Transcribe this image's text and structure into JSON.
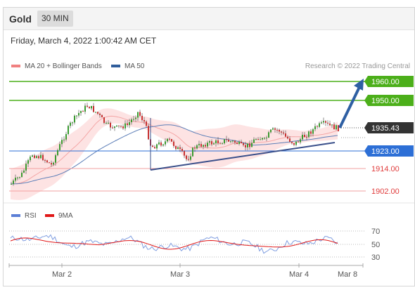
{
  "header": {
    "title": "Gold",
    "timeframe": "30 MIN"
  },
  "datetime": "Friday, March 4, 2022 1:00:42 AM CET",
  "legend": {
    "bollinger": {
      "label": "MA 20 + Bollinger Bands",
      "color": "#f08080"
    },
    "ma50": {
      "label": "MA 50",
      "color": "#2f5d9b"
    }
  },
  "credit": "Research © 2022 Trading Central",
  "levels": [
    {
      "label": "1960.00",
      "value": 1960,
      "color": "#4caf1a",
      "kind": "resistance"
    },
    {
      "label": "1950.00",
      "value": 1950,
      "color": "#4caf1a",
      "kind": "resistance"
    },
    {
      "label": "1935.43",
      "value": 1935.43,
      "color": "#333333",
      "kind": "last"
    },
    {
      "label": "1923.00",
      "value": 1923,
      "color": "#2d6fd6",
      "kind": "pivot"
    },
    {
      "label": "1914.00",
      "value": 1914,
      "color": "#e03c3c",
      "kind": "support"
    },
    {
      "label": "1902.00",
      "value": 1902,
      "color": "#e03c3c",
      "kind": "support"
    }
  ],
  "rsi_legend": {
    "rsi": {
      "label": "RSI",
      "color": "#5b7fd6"
    },
    "ma9": {
      "label": "9MA",
      "color": "#e01818"
    }
  },
  "rsi_levels": [
    "70",
    "50",
    "30"
  ],
  "xaxis": [
    "Mar 2",
    "Mar 3",
    "Mar 4",
    "Mar 8"
  ]
}
